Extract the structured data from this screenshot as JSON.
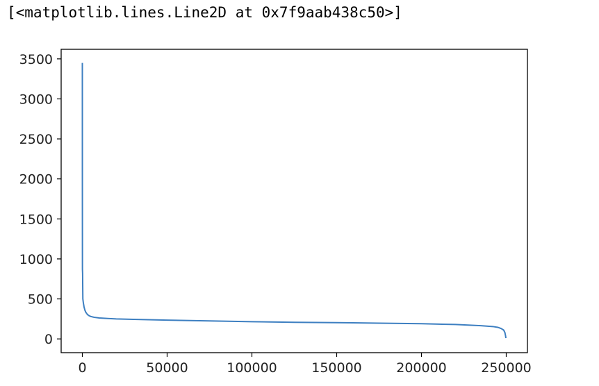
{
  "output_repr": "[<matplotlib.lines.Line2D at 0x7f9aab438c50>]",
  "colors": {
    "line": "#3d7fc1",
    "axes": "#000000"
  },
  "chart_data": {
    "type": "line",
    "title": "",
    "xlabel": "",
    "ylabel": "",
    "xlim": [
      -12500,
      262500
    ],
    "ylim": [
      -172,
      3620
    ],
    "xticks": [
      0,
      50000,
      100000,
      150000,
      200000,
      250000
    ],
    "xtick_labels": [
      "0",
      "50000",
      "100000",
      "150000",
      "200000",
      "250000"
    ],
    "yticks": [
      0,
      500,
      1000,
      1500,
      2000,
      2500,
      3000,
      3500
    ],
    "ytick_labels": [
      "0",
      "500",
      "1000",
      "1500",
      "2000",
      "2500",
      "3000",
      "3500"
    ],
    "grid": false,
    "legend": false,
    "series": [
      {
        "x": [
          0,
          20,
          60,
          150,
          300,
          600,
          1000,
          1500,
          2000,
          3000,
          4000,
          5000,
          7000,
          10000,
          15000,
          20000,
          30000,
          50000,
          75000,
          100000,
          125000,
          150000,
          175000,
          200000,
          220000,
          235000,
          242000,
          245000,
          247000,
          248500,
          249200,
          249600,
          249800
        ],
        "y": [
          3450,
          2000,
          870,
          820,
          500,
          450,
          400,
          360,
          335,
          305,
          290,
          280,
          270,
          262,
          255,
          250,
          245,
          235,
          225,
          215,
          208,
          203,
          197,
          190,
          180,
          165,
          155,
          145,
          130,
          110,
          80,
          40,
          10
        ]
      }
    ]
  }
}
